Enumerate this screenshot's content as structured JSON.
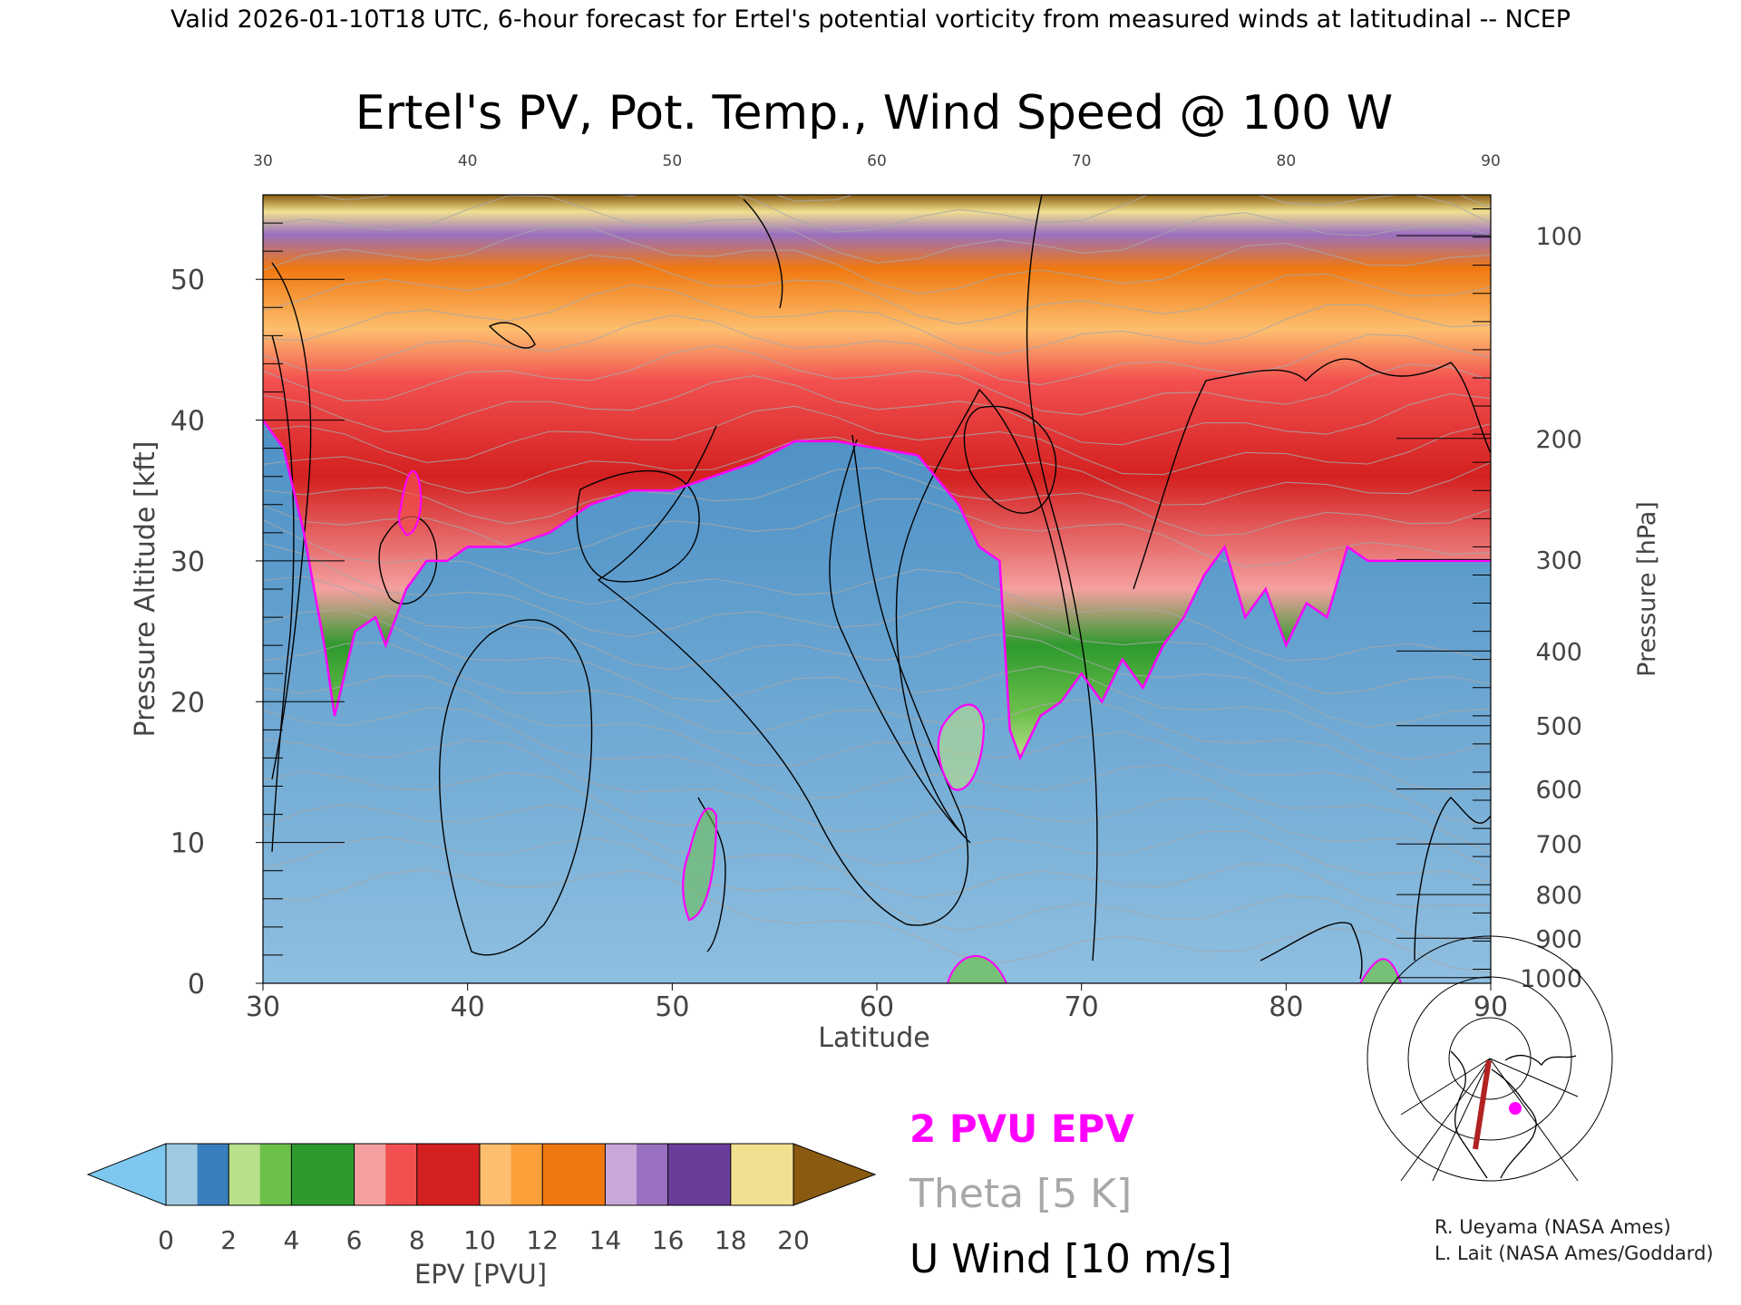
{
  "header": {
    "valid_line": "Valid 2026-01-10T18 UTC, 6-hour forecast for Ertel's potential vorticity from measured winds at latitudinal -- NCEP"
  },
  "chart_data": {
    "type": "heatmap",
    "title": "Ertel's PV, Pot. Temp., Wind Speed @ 100 W",
    "xlabel": "Latitude",
    "ylabel": "Pressure Altitude [kft]",
    "ylabel_right": "Pressure [hPa]",
    "xlim": [
      30,
      90
    ],
    "ylim": [
      0,
      56
    ],
    "x_ticks": [
      "30",
      "40",
      "50",
      "60",
      "70",
      "80",
      "90"
    ],
    "x_ticks_top": [
      "30",
      "40",
      "50",
      "60",
      "70",
      "80",
      "90"
    ],
    "y_ticks": [
      "0",
      "10",
      "20",
      "30",
      "40",
      "50"
    ],
    "pressure_ticks": [
      {
        "label": "100",
        "kft": 53.1
      },
      {
        "label": "200",
        "kft": 38.7
      },
      {
        "label": "300",
        "kft": 30.1
      },
      {
        "label": "400",
        "kft": 23.6
      },
      {
        "label": "500",
        "kft": 18.3
      },
      {
        "label": "600",
        "kft": 13.8
      },
      {
        "label": "700",
        "kft": 9.9
      },
      {
        "label": "800",
        "kft": 6.3
      },
      {
        "label": "900",
        "kft": 3.2
      },
      {
        "label": "1000",
        "kft": 0.4
      }
    ],
    "tropopause_2pvu_kft": [
      {
        "lat": 30,
        "kft": 40
      },
      {
        "lat": 31,
        "kft": 38
      },
      {
        "lat": 32,
        "kft": 32
      },
      {
        "lat": 33,
        "kft": 24
      },
      {
        "lat": 33.5,
        "kft": 19
      },
      {
        "lat": 34.5,
        "kft": 25
      },
      {
        "lat": 35.5,
        "kft": 26
      },
      {
        "lat": 36,
        "kft": 24
      },
      {
        "lat": 37,
        "kft": 28
      },
      {
        "lat": 38,
        "kft": 30
      },
      {
        "lat": 39,
        "kft": 30
      },
      {
        "lat": 40,
        "kft": 31
      },
      {
        "lat": 42,
        "kft": 31
      },
      {
        "lat": 44,
        "kft": 32
      },
      {
        "lat": 46,
        "kft": 34
      },
      {
        "lat": 48,
        "kft": 35
      },
      {
        "lat": 50,
        "kft": 35
      },
      {
        "lat": 52,
        "kft": 36
      },
      {
        "lat": 54,
        "kft": 37
      },
      {
        "lat": 56,
        "kft": 38.5
      },
      {
        "lat": 58,
        "kft": 38.5
      },
      {
        "lat": 60,
        "kft": 38
      },
      {
        "lat": 62,
        "kft": 37.5
      },
      {
        "lat": 64,
        "kft": 34
      },
      {
        "lat": 65,
        "kft": 31
      },
      {
        "lat": 66,
        "kft": 30
      },
      {
        "lat": 66.5,
        "kft": 18
      },
      {
        "lat": 67,
        "kft": 16
      },
      {
        "lat": 68,
        "kft": 19
      },
      {
        "lat": 69,
        "kft": 20
      },
      {
        "lat": 70,
        "kft": 22
      },
      {
        "lat": 71,
        "kft": 20
      },
      {
        "lat": 72,
        "kft": 23
      },
      {
        "lat": 73,
        "kft": 21
      },
      {
        "lat": 74,
        "kft": 24
      },
      {
        "lat": 75,
        "kft": 26
      },
      {
        "lat": 76,
        "kft": 29
      },
      {
        "lat": 77,
        "kft": 31
      },
      {
        "lat": 78,
        "kft": 26
      },
      {
        "lat": 79,
        "kft": 28
      },
      {
        "lat": 80,
        "kft": 24
      },
      {
        "lat": 81,
        "kft": 27
      },
      {
        "lat": 82,
        "kft": 26
      },
      {
        "lat": 83,
        "kft": 31
      },
      {
        "lat": 84,
        "kft": 30
      },
      {
        "lat": 86,
        "kft": 30
      },
      {
        "lat": 88,
        "kft": 30
      },
      {
        "lat": 90,
        "kft": 30
      }
    ],
    "colorbar": {
      "label": "EPV [PVU]",
      "ticks": [
        "0",
        "2",
        "4",
        "6",
        "8",
        "10",
        "12",
        "14",
        "16",
        "18",
        "20"
      ],
      "bands": [
        {
          "from": 0,
          "to": 1,
          "color": "#9ecae1"
        },
        {
          "from": 1,
          "to": 2,
          "color": "#3a7fbd"
        },
        {
          "from": 2,
          "to": 3,
          "color": "#b8e08a"
        },
        {
          "from": 3,
          "to": 4,
          "color": "#6cc04a"
        },
        {
          "from": 4,
          "to": 6,
          "color": "#2e9a2e"
        },
        {
          "from": 6,
          "to": 7,
          "color": "#f4a0a0"
        },
        {
          "from": 7,
          "to": 8,
          "color": "#f25050"
        },
        {
          "from": 8,
          "to": 10,
          "color": "#d42020"
        },
        {
          "from": 10,
          "to": 11,
          "color": "#fdbf6f"
        },
        {
          "from": 11,
          "to": 12,
          "color": "#fda03a"
        },
        {
          "from": 12,
          "to": 14,
          "color": "#f07810"
        },
        {
          "from": 14,
          "to": 15,
          "color": "#c8a8d8"
        },
        {
          "from": 15,
          "to": 16,
          "color": "#9a70c0"
        },
        {
          "from": 16,
          "to": 18,
          "color": "#6a3d9a"
        },
        {
          "from": 18,
          "to": 20,
          "color": "#f0e090"
        }
      ],
      "under_color": "#7ec8f0",
      "over_color": "#8a5a10"
    }
  },
  "legend": {
    "pv_label": "2 PVU EPV",
    "pv_color": "#ff00ff",
    "theta_label": "Theta [5 K]",
    "theta_color": "#a8a8a8",
    "wind_label": "U Wind [10 m/s]",
    "wind_color": "#000000"
  },
  "credits": {
    "line1": "R. Ueyama (NASA Ames)",
    "line2": "L. Lait (NASA Ames/Goddard)"
  },
  "inset_map": {
    "track_color": "#b22222",
    "marker_color": "#ff00ff"
  }
}
